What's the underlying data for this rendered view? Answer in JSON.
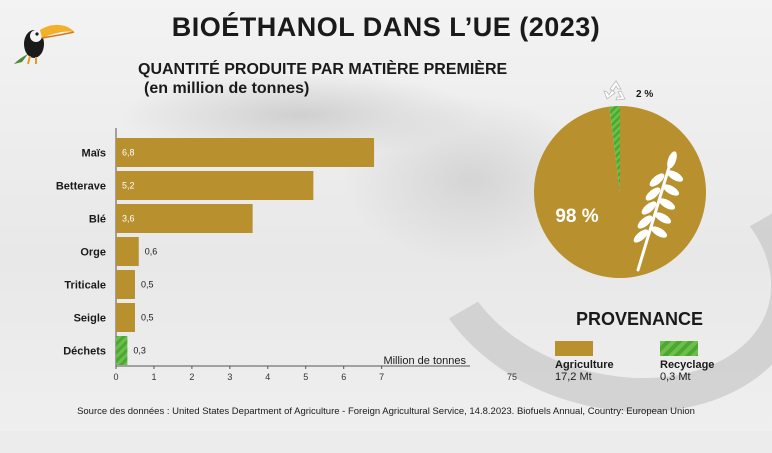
{
  "title": "BIOÉTHANOL DANS L’UE (2023)",
  "subtitle_line1": "QUANTITÉ PRODUITE PAR MATIÈRE PREMIÈRE",
  "subtitle_line2": "(en million de tonnes)",
  "chart_data": [
    {
      "type": "bar",
      "orientation": "horizontal",
      "categories": [
        "Maïs",
        "Betterave",
        "Blé",
        "Orge",
        "Triticale",
        "Seigle",
        "Déchets"
      ],
      "values": [
        6.8,
        5.2,
        3.6,
        0.6,
        0.5,
        0.5,
        0.3
      ],
      "value_labels": [
        "6,8",
        "5,2",
        "3,6",
        "0,6",
        "0,5",
        "0,5",
        "0,3"
      ],
      "xlabel": "Million de tonnes",
      "xlim": [
        0,
        7
      ],
      "xticks": [
        "0",
        "1",
        "2",
        "3",
        "4",
        "5",
        "6",
        "7"
      ],
      "colors": [
        "#b8902e",
        "#b8902e",
        "#b8902e",
        "#b8902e",
        "#b8902e",
        "#b8902e",
        "#6cc04a"
      ]
    },
    {
      "type": "pie",
      "title": "PROVENANCE",
      "slices": [
        {
          "name": "Agriculture",
          "value": 17.2,
          "unit": "Mt",
          "percent": 98,
          "label": "98 %",
          "color": "#b8902e"
        },
        {
          "name": "Recyclage",
          "value": 0.3,
          "unit": "Mt",
          "percent": 2,
          "label": "2 %",
          "color": "#6cc04a"
        }
      ]
    }
  ],
  "legend": {
    "agri_name": "Agriculture",
    "agri_value": "17,2 Mt",
    "rec_name": "Recyclage",
    "rec_value": "0,3 Mt"
  },
  "stray_label": "75",
  "source": "Source des données : United States Department of Agriculture - Foreign Agricultural Service, 14.8.2023. Biofuels Annual, Country: European Union"
}
